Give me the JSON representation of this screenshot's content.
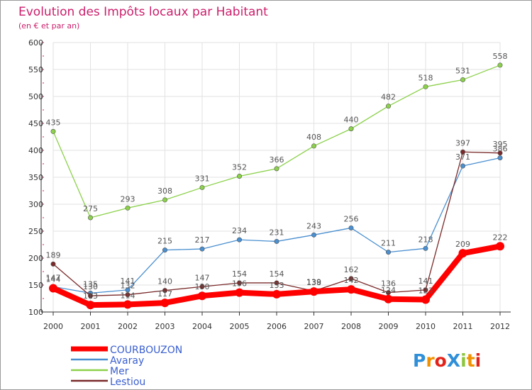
{
  "chart_data": {
    "type": "line",
    "title": "Evolution des Impôts locaux par Habitant",
    "subtitle": "(en € et par an)",
    "xlabel": "",
    "ylabel": "",
    "ylim": [
      100,
      600
    ],
    "y_ticks": [
      100,
      150,
      200,
      250,
      300,
      350,
      400,
      450,
      500,
      550,
      600
    ],
    "grid": true,
    "legend_position": "bottom-left",
    "categories": [
      "2000",
      "2001",
      "2002",
      "2003",
      "2004",
      "2005",
      "2006",
      "2007",
      "2008",
      "2009",
      "2010",
      "2011",
      "2012"
    ],
    "series": [
      {
        "name": "COURBOUZON",
        "color": "#ff0000",
        "emphasis": true,
        "label_color": "#555555",
        "values": [
          144,
          113,
          114,
          117,
          130,
          136,
          133,
          138,
          142,
          124,
          123,
          209,
          222
        ]
      },
      {
        "name": "Avaray",
        "color": "#4a8fd0",
        "emphasis": false,
        "label_color": "#555555",
        "values": [
          147,
          135,
          141,
          215,
          217,
          234,
          231,
          243,
          256,
          211,
          218,
          371,
          386
        ]
      },
      {
        "name": "Mer",
        "color": "#8cd14b",
        "emphasis": false,
        "label_color": "#555555",
        "values": [
          435,
          275,
          293,
          308,
          331,
          352,
          366,
          408,
          440,
          482,
          518,
          531,
          558
        ]
      },
      {
        "name": "Lestiou",
        "color": "#7a2a2a",
        "emphasis": false,
        "label_color": "#555555",
        "values": [
          189,
          130,
          132,
          140,
          147,
          154,
          154,
          139,
          162,
          136,
          141,
          397,
          395
        ]
      }
    ]
  },
  "theme": {
    "title_color": "#cc1e6b",
    "axis_color": "#333333",
    "grid_color": "#e2e2e2",
    "tick_color": "#cc1e6b",
    "legend_text_color": "#3a5fd0"
  },
  "logo": {
    "text": "ProXiti",
    "letters": [
      "P",
      "r",
      "o",
      "X",
      "i",
      "t",
      "i"
    ],
    "colors": [
      "#2f8fd8",
      "#f29100",
      "#e2231a",
      "#2f8fd8",
      "#8cc63f",
      "#f29100",
      "#e2231a"
    ]
  }
}
